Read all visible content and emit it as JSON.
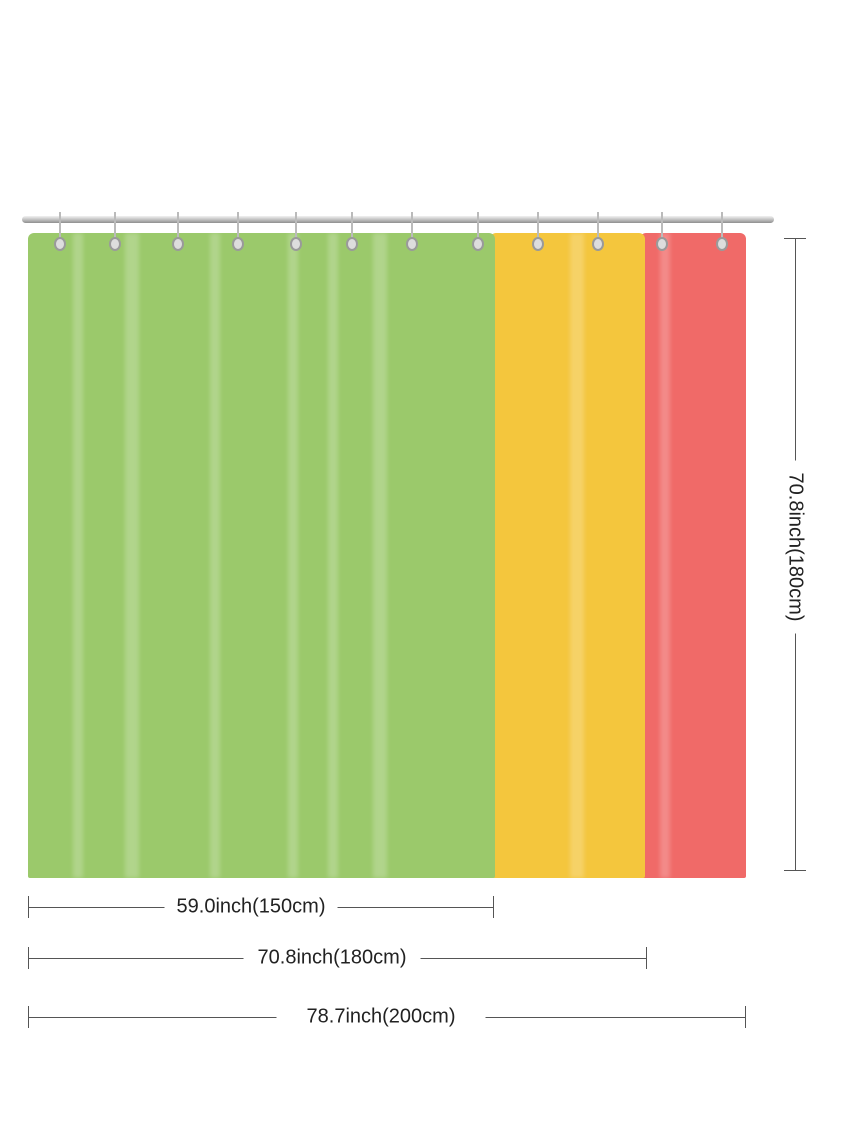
{
  "colors": {
    "green": "#9bc96b",
    "yellow": "#f4c63d",
    "red": "#f06a68"
  },
  "dimensions": {
    "width_small": "59.0inch(150cm)",
    "width_medium": "70.8inch(180cm)",
    "width_large": "78.7inch(200cm)",
    "height": "70.8inch(180cm)"
  }
}
